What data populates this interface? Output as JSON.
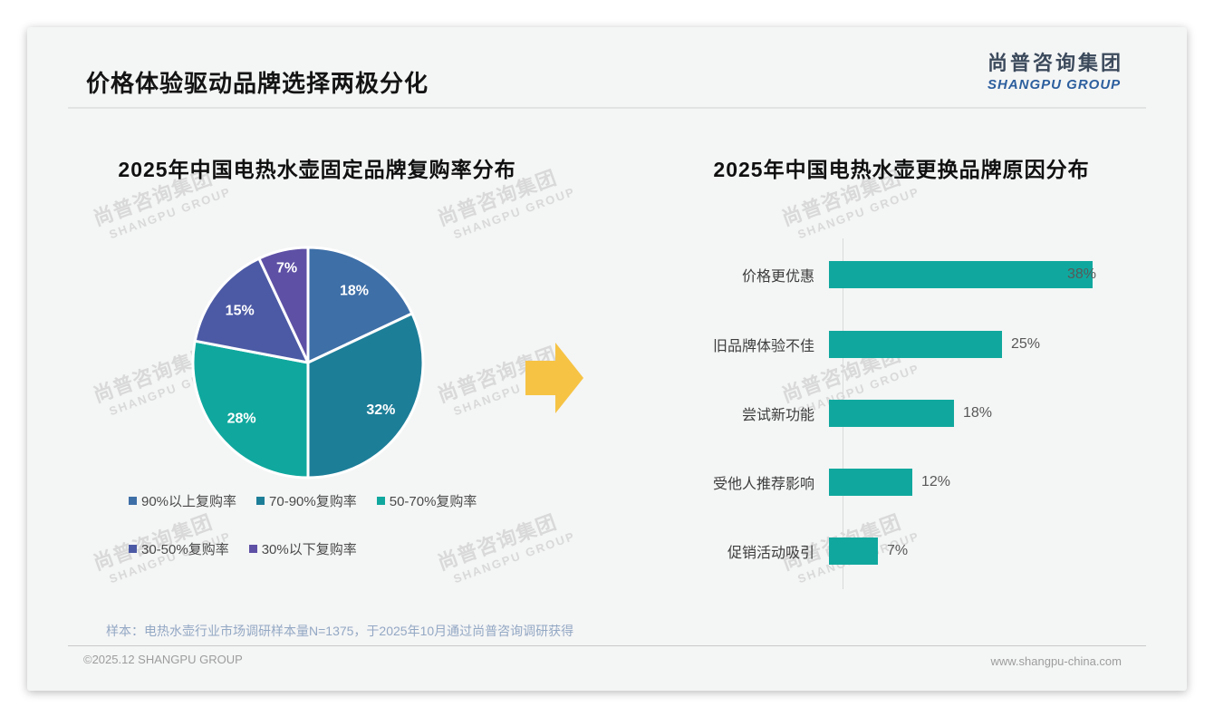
{
  "page": {
    "title": "价格体验驱动品牌选择两极分化",
    "logo": {
      "cn": "尚普咨询集团",
      "en": "SHANGPU GROUP"
    },
    "watermark": {
      "line1": "尚普咨询集团",
      "line2": "SHANGPU GROUP"
    },
    "note": "样本：电热水壶行业市场调研样本量N=1375，于2025年10月通过尚普咨询调研获得",
    "footer": {
      "left": "©2025.12 SHANGPU GROUP",
      "right": "www.shangpu-china.com"
    }
  },
  "arrow_color": "#f6c344",
  "chart_data": [
    {
      "type": "pie",
      "title": "2025年中国电热水壶固定品牌复购率分布",
      "start_position": "top",
      "direction": "clockwise",
      "slices": [
        {
          "label": "90%以上复购率",
          "value": 18,
          "display": "18%",
          "color": "#3e6fa7"
        },
        {
          "label": "70-90%复购率",
          "value": 32,
          "display": "32%",
          "color": "#1d7e98"
        },
        {
          "label": "50-70%复购率",
          "value": 28,
          "display": "28%",
          "color": "#10a89e"
        },
        {
          "label": "30-50%复购率",
          "value": 15,
          "display": "15%",
          "color": "#4c5aa5"
        },
        {
          "label": "30%以下复购率",
          "value": 7,
          "display": "7%",
          "color": "#5e50a5"
        }
      ],
      "legend_position": "bottom"
    },
    {
      "type": "bar",
      "title": "2025年中国电热水壶更换品牌原因分布",
      "orientation": "horizontal",
      "categories": [
        "价格更优惠",
        "旧品牌体验不佳",
        "尝试新功能",
        "受他人推荐影响",
        "促销活动吸引"
      ],
      "values": [
        38,
        25,
        18,
        12,
        7
      ],
      "value_labels": [
        "38%",
        "25%",
        "18%",
        "12%",
        "7%"
      ],
      "xlim": [
        0,
        40
      ],
      "bar_color": "#10a89e",
      "grid": false,
      "legend_position": "none"
    }
  ]
}
